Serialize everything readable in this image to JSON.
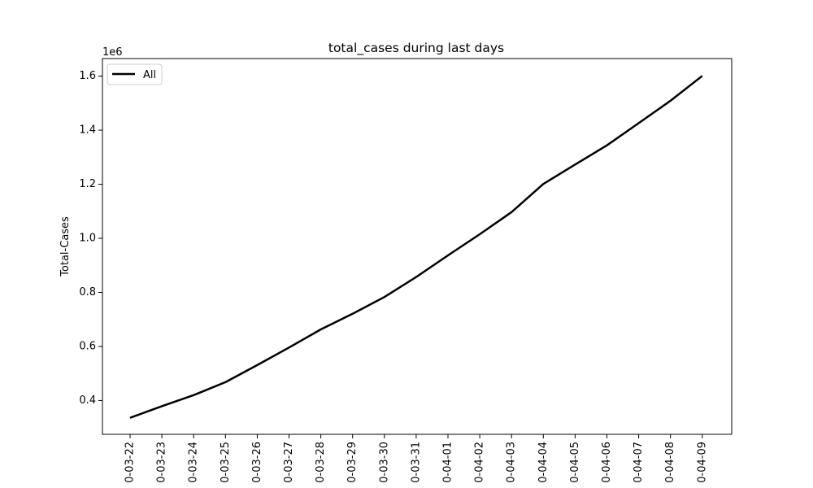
{
  "chart_data": {
    "type": "line",
    "title": "total_cases during last days",
    "xlabel": "",
    "ylabel": "Total-Cases",
    "y_offset_label": "1e6",
    "categories": [
      "0-03-22",
      "0-03-23",
      "0-03-24",
      "0-03-25",
      "0-03-26",
      "0-03-27",
      "0-03-28",
      "0-03-29",
      "0-03-30",
      "0-03-31",
      "0-04-01",
      "0-04-02",
      "0-04-03",
      "0-04-04",
      "0-04-05",
      "0-04-06",
      "0-04-07",
      "0-04-08",
      "0-04-09"
    ],
    "yticks": [
      "0.4",
      "0.6",
      "0.8",
      "1.0",
      "1.2",
      "1.4",
      "1.6"
    ],
    "ytick_values": [
      0.4,
      0.6,
      0.8,
      1.0,
      1.2,
      1.4,
      1.6
    ],
    "ylim": [
      0.275,
      1.665
    ],
    "grid": false,
    "legend_position": "top-left",
    "series": [
      {
        "name": "All",
        "color": "#000000",
        "values": [
          0.336,
          0.379,
          0.42,
          0.468,
          0.531,
          0.596,
          0.663,
          0.721,
          0.783,
          0.857,
          0.937,
          1.015,
          1.097,
          1.201,
          1.273,
          1.344,
          1.426,
          1.509,
          1.601
        ]
      }
    ]
  }
}
